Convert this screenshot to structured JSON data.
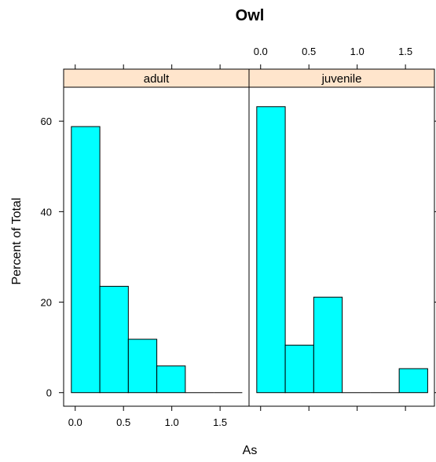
{
  "chart_data": {
    "type": "bar",
    "title": "Owl",
    "xlabel": "As",
    "ylabel": "Percent of Total",
    "x_ticks": [
      0.0,
      0.5,
      1.0,
      1.5
    ],
    "x_tick_labels": [
      "0.0",
      "0.5",
      "1.0",
      "1.5"
    ],
    "y_ticks": [
      0,
      20,
      40,
      60
    ],
    "y_tick_labels": [
      "0",
      "20",
      "40",
      "60"
    ],
    "xlim": [
      -0.12,
      1.8
    ],
    "ylim": [
      -3,
      67.5
    ],
    "bin_edges": [
      -0.04,
      0.255,
      0.55,
      0.845,
      1.14,
      1.435,
      1.73
    ],
    "bar_fill": "#00FFFF",
    "strip_fill": "#FFE5CC",
    "panels": [
      {
        "name": "adult",
        "values": [
          58.8,
          23.5,
          11.8,
          5.9,
          0,
          0
        ]
      },
      {
        "name": "juvenile",
        "values": [
          63.2,
          10.5,
          21.1,
          0,
          0,
          5.3
        ]
      }
    ]
  }
}
